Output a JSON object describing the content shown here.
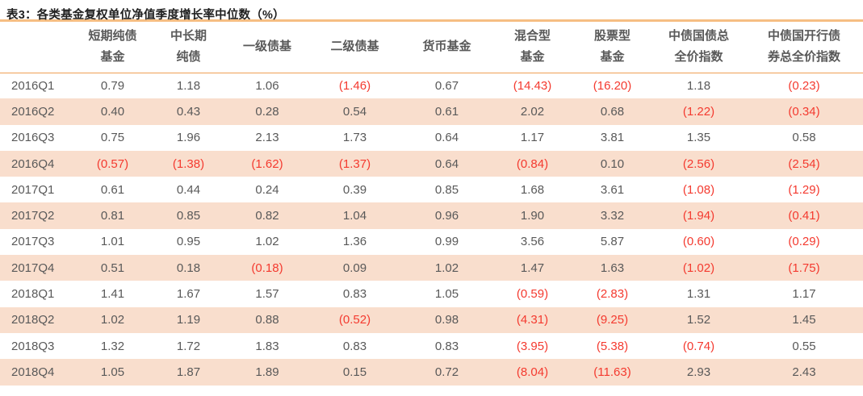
{
  "title": "表3：各类基金复权单位净值季度增长率中位数（%）",
  "colors": {
    "title_text": "#1f1f1f",
    "body_text": "#595959",
    "negative_text": "#f43a2f",
    "stripe_row_bg": "#f9decd",
    "top_rule": "#f6be83",
    "header_rule": "#efa054"
  },
  "table": {
    "row_label_header": "",
    "columns": [
      {
        "lines": [
          "短期纯债",
          "基金"
        ]
      },
      {
        "lines": [
          "中长期",
          "纯债"
        ]
      },
      {
        "lines": [
          "一级债基"
        ]
      },
      {
        "lines": [
          "二级债基"
        ]
      },
      {
        "lines": [
          "货币基金"
        ]
      },
      {
        "lines": [
          "混合型",
          "基金"
        ]
      },
      {
        "lines": [
          "股票型",
          "基金"
        ]
      },
      {
        "lines": [
          "中债国债总",
          "全价指数"
        ]
      },
      {
        "lines": [
          "中债国开行债",
          "券总全价指数"
        ]
      }
    ],
    "rows": [
      {
        "label": "2016Q1",
        "values": [
          "0.79",
          "1.18",
          "1.06",
          "(1.46)",
          "0.67",
          "(14.43)",
          "(16.20)",
          "1.18",
          "(0.23)"
        ]
      },
      {
        "label": "2016Q2",
        "values": [
          "0.40",
          "0.43",
          "0.28",
          "0.54",
          "0.61",
          "2.02",
          "0.68",
          "(1.22)",
          "(0.34)"
        ]
      },
      {
        "label": "2016Q3",
        "values": [
          "0.75",
          "1.96",
          "2.13",
          "1.73",
          "0.64",
          "1.17",
          "3.81",
          "1.35",
          "0.58"
        ]
      },
      {
        "label": "2016Q4",
        "values": [
          "(0.57)",
          "(1.38)",
          "(1.62)",
          "(1.37)",
          "0.64",
          "(0.84)",
          "0.10",
          "(2.56)",
          "(2.54)"
        ]
      },
      {
        "label": "2017Q1",
        "values": [
          "0.61",
          "0.44",
          "0.24",
          "0.39",
          "0.85",
          "1.68",
          "3.61",
          "(1.08)",
          "(1.29)"
        ]
      },
      {
        "label": "2017Q2",
        "values": [
          "0.81",
          "0.85",
          "0.82",
          "1.04",
          "0.96",
          "1.90",
          "3.32",
          "(1.94)",
          "(0.41)"
        ]
      },
      {
        "label": "2017Q3",
        "values": [
          "1.01",
          "0.95",
          "1.02",
          "1.36",
          "0.99",
          "3.56",
          "5.87",
          "(0.60)",
          "(0.29)"
        ]
      },
      {
        "label": "2017Q4",
        "values": [
          "0.51",
          "0.18",
          "(0.18)",
          "0.09",
          "1.02",
          "1.47",
          "1.63",
          "(1.02)",
          "(1.75)"
        ]
      },
      {
        "label": "2018Q1",
        "values": [
          "1.41",
          "1.67",
          "1.57",
          "0.83",
          "1.05",
          "(0.59)",
          "(2.83)",
          "1.31",
          "1.17"
        ]
      },
      {
        "label": "2018Q2",
        "values": [
          "1.02",
          "1.19",
          "0.88",
          "(0.52)",
          "0.98",
          "(4.31)",
          "(9.25)",
          "1.52",
          "1.45"
        ]
      },
      {
        "label": "2018Q3",
        "values": [
          "1.32",
          "1.72",
          "1.83",
          "0.83",
          "0.83",
          "(3.95)",
          "(5.38)",
          "(0.74)",
          "0.55"
        ]
      },
      {
        "label": "2018Q4",
        "values": [
          "1.05",
          "1.87",
          "1.89",
          "0.15",
          "0.72",
          "(8.04)",
          "(11.63)",
          "2.93",
          "2.43"
        ]
      }
    ]
  }
}
